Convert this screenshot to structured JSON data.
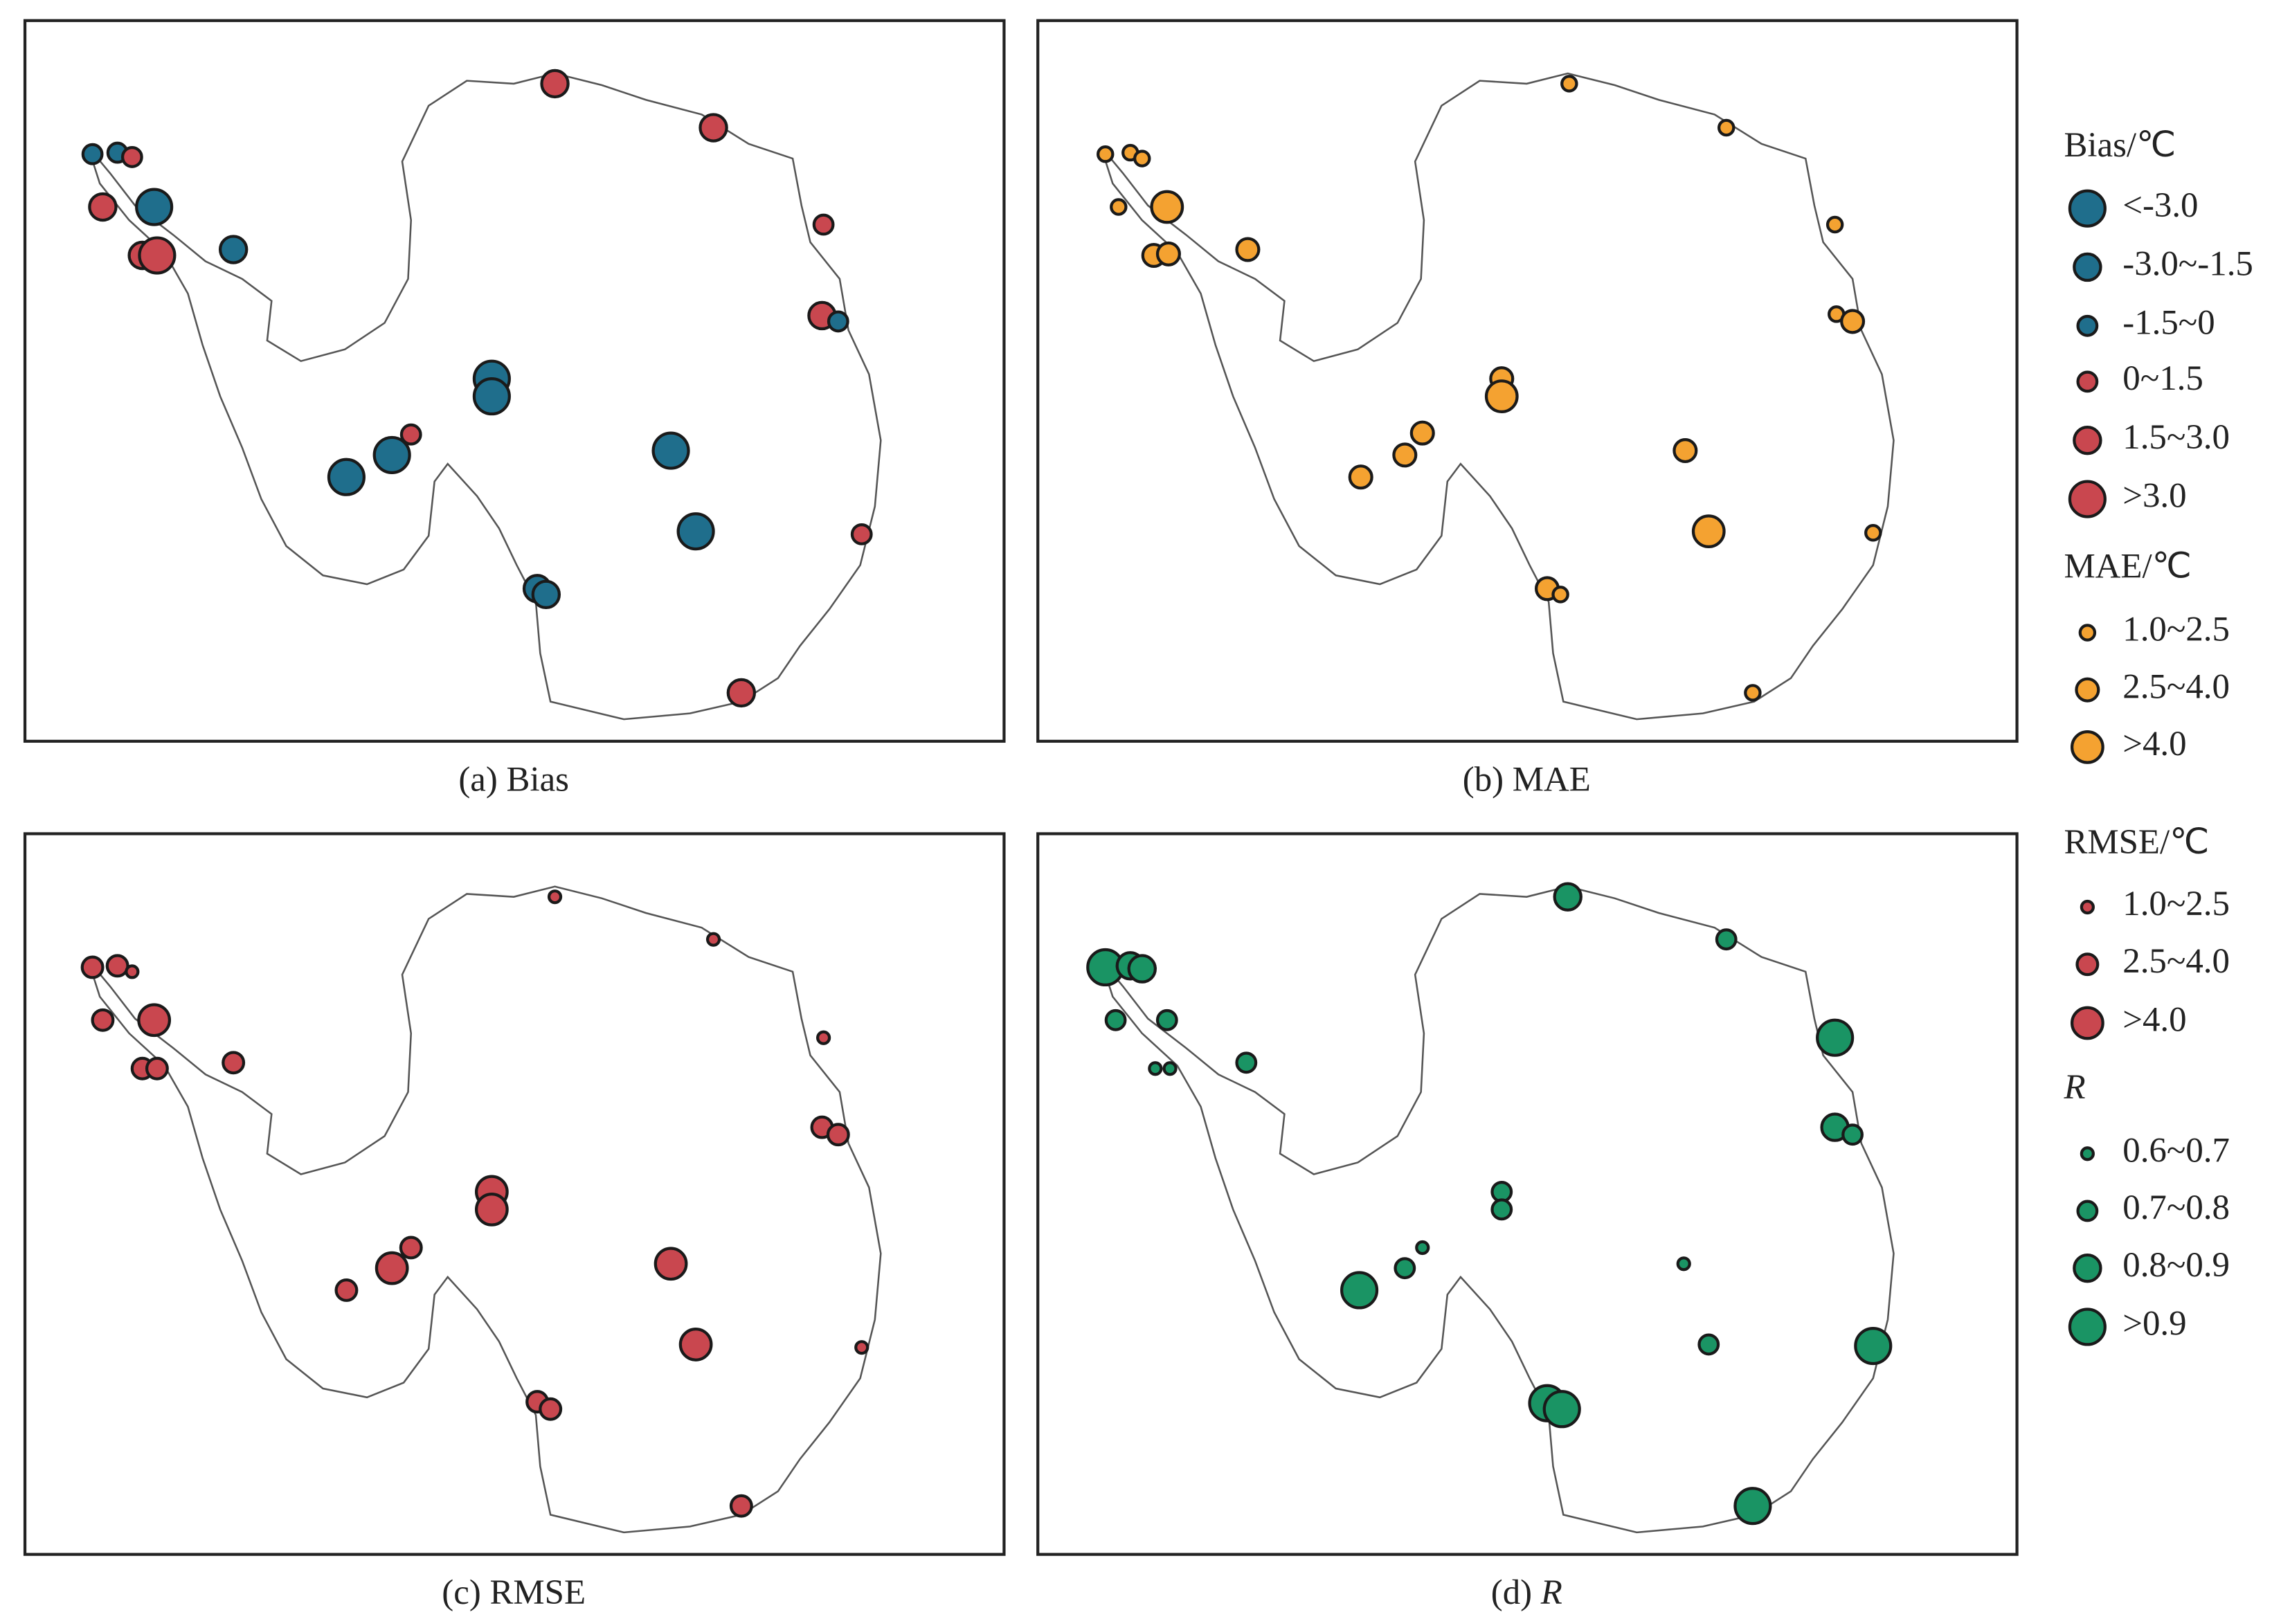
{
  "panels": [
    {
      "label": "(a)",
      "name": "Bias"
    },
    {
      "label": "(b)",
      "name": "MAE"
    },
    {
      "label": "(c)",
      "name": "RMSE"
    },
    {
      "label": "(d)",
      "name": "R"
    }
  ],
  "legends": [
    {
      "title": "Bias/℃",
      "items": [
        {
          "label": "<-3.0",
          "color": "#1f6e8c"
        },
        {
          "label": "-3.0~-1.5",
          "color": "#1f6e8c"
        },
        {
          "label": "-1.5~0",
          "color": "#1f6e8c"
        },
        {
          "label": "0~1.5",
          "color": "#c9474f"
        },
        {
          "label": "1.5~3.0",
          "color": "#c9474f"
        },
        {
          "label": ">3.0",
          "color": "#c9474f"
        }
      ]
    },
    {
      "title": "MAE/℃",
      "items": [
        {
          "label": "1.0~2.5",
          "color": "#f4a231"
        },
        {
          "label": "2.5~4.0",
          "color": "#f4a231"
        },
        {
          "label": ">4.0",
          "color": "#f4a231"
        }
      ]
    },
    {
      "title": "RMSE/℃",
      "items": [
        {
          "label": "1.0~2.5",
          "color": "#c9474f"
        },
        {
          "label": "2.5~4.0",
          "color": "#c9474f"
        },
        {
          "label": ">4.0",
          "color": "#c9474f"
        }
      ]
    },
    {
      "title": "R",
      "items": [
        {
          "label": "0.6~0.7",
          "color": "#1a9464"
        },
        {
          "label": "0.7~0.8",
          "color": "#1a9464"
        },
        {
          "label": "0.8~0.9",
          "color": "#1a9464"
        },
        {
          "label": ">0.9",
          "color": "#1a9464"
        }
      ]
    }
  ]
}
